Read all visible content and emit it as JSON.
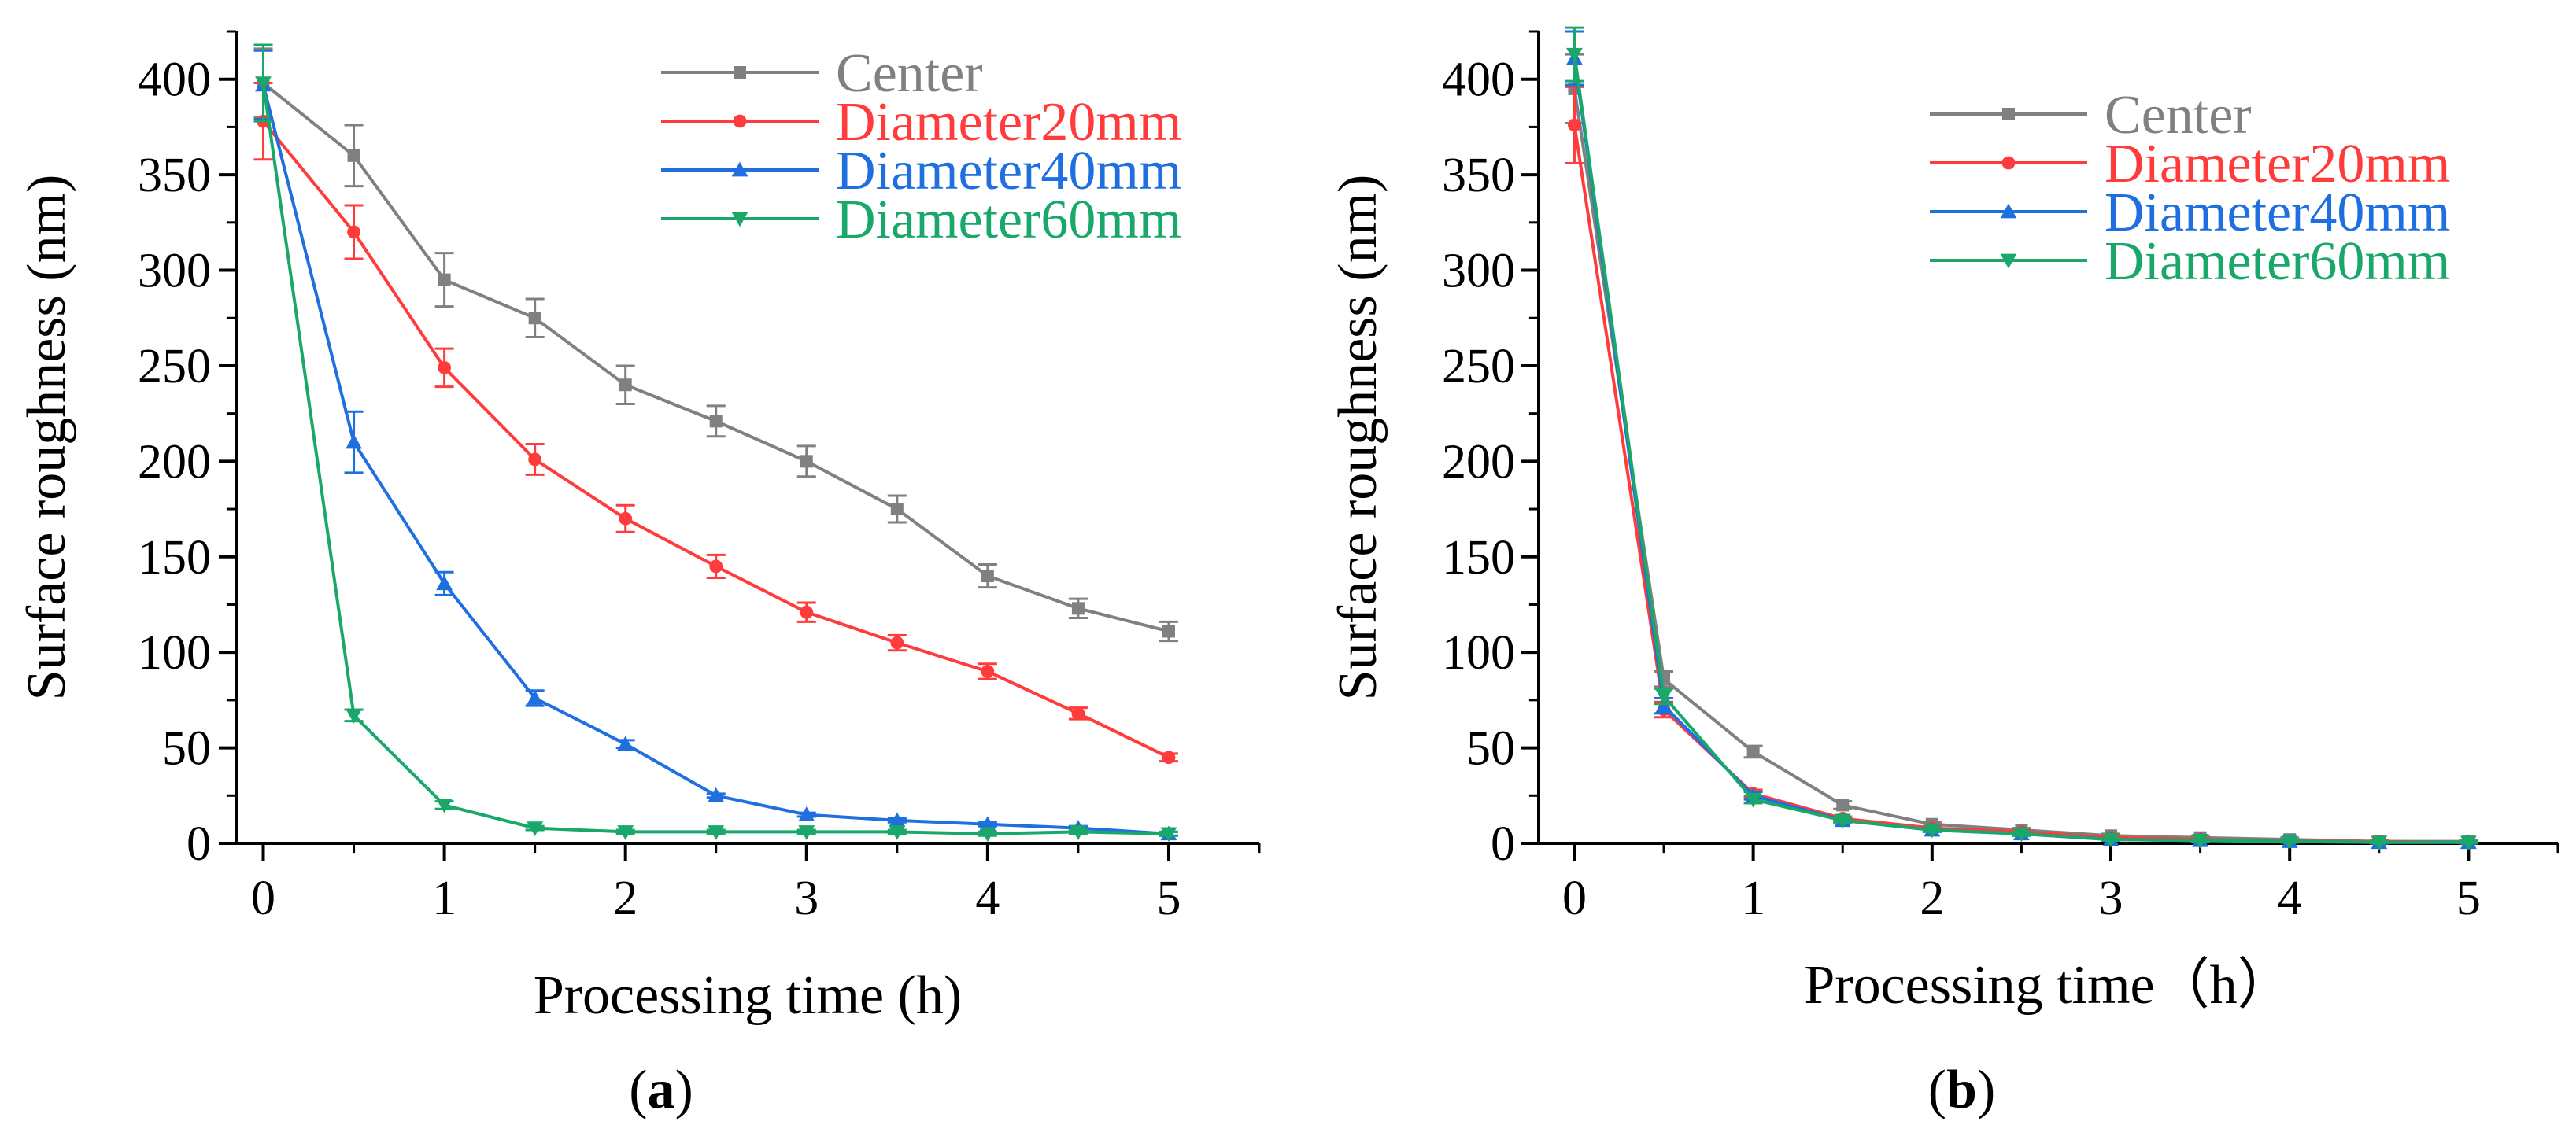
{
  "chart_data": [
    {
      "panel": "a",
      "type": "line",
      "panel_label": "a",
      "xlabel": "Processing time (h)",
      "ylabel": "Surface roughness (nm)",
      "xlim": [
        -0.15,
        5.5
      ],
      "ylim": [
        0,
        425
      ],
      "xticks": [
        0,
        1,
        2,
        3,
        4,
        5
      ],
      "yticks": [
        0,
        50,
        100,
        150,
        200,
        250,
        300,
        350,
        400
      ],
      "legend_position": "top-right",
      "x": [
        0,
        0.5,
        1,
        1.5,
        2,
        2.5,
        3,
        3.5,
        4,
        4.5,
        5
      ],
      "series": [
        {
          "name": "Center",
          "color": "#808080",
          "marker": "square",
          "values": [
            398,
            360,
            295,
            275,
            240,
            221,
            200,
            175,
            140,
            123,
            111
          ],
          "errors": [
            18,
            16,
            14,
            10,
            10,
            8,
            8,
            7,
            6,
            5,
            5
          ]
        },
        {
          "name": "Diameter20mm",
          "color": "#ff3b3b",
          "marker": "circle",
          "values": [
            378,
            320,
            249,
            201,
            170,
            145,
            121,
            105,
            90,
            68,
            45
          ],
          "errors": [
            20,
            14,
            10,
            8,
            7,
            6,
            5,
            4,
            4,
            3,
            2
          ]
        },
        {
          "name": "Diameter40mm",
          "color": "#1f6fe0",
          "marker": "triangle-up",
          "values": [
            397,
            210,
            136,
            76,
            52,
            25,
            15,
            12,
            10,
            8,
            5
          ],
          "errors": [
            18,
            16,
            6,
            4,
            2,
            1,
            1,
            1,
            1,
            1,
            1
          ]
        },
        {
          "name": "Diameter60mm",
          "color": "#1aa86a",
          "marker": "triangle-down",
          "values": [
            398,
            67,
            20,
            8,
            6,
            6,
            6,
            6,
            5,
            6,
            5
          ],
          "errors": [
            20,
            3,
            2,
            1,
            1,
            1,
            1,
            1,
            1,
            1,
            1
          ]
        }
      ]
    },
    {
      "panel": "b",
      "type": "line",
      "panel_label": "b",
      "xlabel": "Processing time（h）",
      "ylabel": "Surface roughness (nm)",
      "xlim": [
        -0.2,
        5.5
      ],
      "ylim": [
        0,
        425
      ],
      "xticks": [
        0,
        1,
        2,
        3,
        4,
        5
      ],
      "yticks": [
        0,
        50,
        100,
        150,
        200,
        250,
        300,
        350,
        400
      ],
      "legend_position": "top-right",
      "x": [
        0,
        0.5,
        1,
        1.5,
        2,
        2.5,
        3,
        3.5,
        4,
        4.5,
        5
      ],
      "series": [
        {
          "name": "Center",
          "color": "#808080",
          "marker": "square",
          "values": [
            395,
            86,
            48,
            20,
            10,
            7,
            4,
            3,
            2,
            1,
            1
          ],
          "errors": [
            18,
            4,
            3,
            2,
            1,
            1,
            1,
            1,
            1,
            0.5,
            0.5
          ]
        },
        {
          "name": "Diameter20mm",
          "color": "#ff3b3b",
          "marker": "circle",
          "values": [
            376,
            70,
            26,
            13,
            8,
            6,
            3,
            2,
            1,
            1,
            0.5
          ],
          "errors": [
            20,
            4,
            2,
            1,
            1,
            1,
            1,
            1,
            0.5,
            0.5,
            0.5
          ]
        },
        {
          "name": "Diameter40mm",
          "color": "#1f6fe0",
          "marker": "triangle-up",
          "values": [
            411,
            72,
            25,
            12,
            7,
            5,
            2,
            1.5,
            1,
            0.5,
            0.5
          ],
          "errors": [
            14,
            4,
            2,
            1,
            1,
            1,
            0.5,
            0.5,
            0.5,
            0.5,
            0.5
          ]
        },
        {
          "name": "Diameter60mm",
          "color": "#1aa86a",
          "marker": "triangle-down",
          "values": [
            413,
            77,
            23,
            12,
            7,
            5,
            2,
            1.5,
            1,
            0.5,
            0.5
          ],
          "errors": [
            14,
            4,
            2,
            1,
            1,
            1,
            0.5,
            0.5,
            0.5,
            0.5,
            0.5
          ]
        }
      ]
    }
  ]
}
